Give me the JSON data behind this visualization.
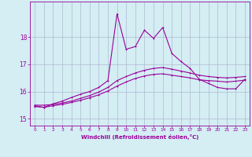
{
  "xlabel": "Windchill (Refroidissement éolien,°C)",
  "bg_color": "#d4eef4",
  "grid_color": "#b0b8d0",
  "line_color": "#990099",
  "xlim": [
    -0.5,
    23.5
  ],
  "ylim": [
    14.75,
    19.3
  ],
  "yticks": [
    15,
    16,
    17,
    18
  ],
  "xticks": [
    0,
    1,
    2,
    3,
    4,
    5,
    6,
    7,
    8,
    9,
    10,
    11,
    12,
    13,
    14,
    15,
    16,
    17,
    18,
    19,
    20,
    21,
    22,
    23
  ],
  "line_main_x": [
    0,
    1,
    2,
    3,
    4,
    5,
    6,
    7,
    8,
    9,
    10,
    11,
    12,
    13,
    14,
    15,
    16,
    17,
    18,
    19,
    20,
    21,
    22,
    23
  ],
  "line_main_y": [
    15.48,
    15.42,
    15.55,
    15.65,
    15.78,
    15.9,
    16.0,
    16.15,
    16.4,
    18.85,
    17.55,
    17.65,
    18.25,
    17.95,
    18.35,
    17.4,
    17.1,
    16.85,
    16.45,
    16.3,
    16.15,
    16.1,
    16.1,
    16.45
  ],
  "line_upper_x": [
    0,
    1,
    2,
    3,
    4,
    5,
    6,
    7,
    8,
    9,
    10,
    11,
    12,
    13,
    14,
    15,
    16,
    17,
    18,
    19,
    20,
    21,
    22,
    23
  ],
  "line_upper_y": [
    15.5,
    15.5,
    15.52,
    15.58,
    15.65,
    15.75,
    15.85,
    15.98,
    16.15,
    16.4,
    16.55,
    16.68,
    16.78,
    16.85,
    16.88,
    16.82,
    16.75,
    16.68,
    16.6,
    16.55,
    16.52,
    16.5,
    16.52,
    16.55
  ],
  "line_lower_x": [
    0,
    1,
    2,
    3,
    4,
    5,
    6,
    7,
    8,
    9,
    10,
    11,
    12,
    13,
    14,
    15,
    16,
    17,
    18,
    19,
    20,
    21,
    22,
    23
  ],
  "line_lower_y": [
    15.45,
    15.42,
    15.48,
    15.53,
    15.6,
    15.68,
    15.77,
    15.88,
    16.02,
    16.2,
    16.35,
    16.48,
    16.57,
    16.63,
    16.65,
    16.6,
    16.55,
    16.5,
    16.43,
    16.4,
    16.38,
    16.35,
    16.38,
    16.42
  ]
}
